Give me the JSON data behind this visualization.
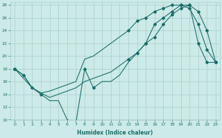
{
  "title": "",
  "xlabel": "Humidex (Indice chaleur)",
  "bg_color": "#cceae7",
  "grid_color": "#aacccc",
  "line_color": "#1a6e6a",
  "xlim": [
    -0.5,
    23.5
  ],
  "ylim": [
    10,
    28.5
  ],
  "xticks": [
    0,
    1,
    2,
    3,
    4,
    5,
    6,
    7,
    8,
    9,
    10,
    11,
    12,
    13,
    14,
    15,
    16,
    17,
    18,
    19,
    20,
    21,
    22,
    23
  ],
  "yticks": [
    10,
    12,
    14,
    16,
    18,
    20,
    22,
    24,
    26,
    28
  ],
  "line1_x": [
    0,
    1,
    2,
    3,
    4,
    5,
    6,
    7,
    8,
    9,
    10,
    11,
    12,
    13,
    14,
    15,
    16,
    17,
    18,
    19,
    20,
    21,
    22,
    23
  ],
  "line1_y": [
    18,
    17,
    15,
    14,
    13,
    13,
    10,
    9.5,
    18,
    15,
    16,
    16,
    17,
    19,
    20.5,
    22,
    25,
    26,
    27,
    28,
    28,
    22,
    19,
    19
  ],
  "line2_x": [
    0,
    1,
    2,
    3,
    4,
    5,
    6,
    7,
    8,
    9,
    10,
    11,
    12,
    13,
    14,
    15,
    16,
    17,
    18,
    19,
    20,
    21,
    22,
    23
  ],
  "line2_y": [
    18,
    17,
    15,
    14.2,
    14.5,
    15.0,
    15.5,
    16,
    19.5,
    20,
    21,
    22,
    23,
    24,
    25.5,
    26,
    27,
    27.5,
    28,
    28,
    27.5,
    25,
    21,
    19
  ],
  "line3_x": [
    0,
    1,
    2,
    3,
    4,
    5,
    6,
    7,
    8,
    9,
    10,
    11,
    12,
    13,
    14,
    15,
    16,
    17,
    18,
    19,
    20,
    21,
    22,
    23
  ],
  "line3_y": [
    18,
    16.5,
    15,
    14.2,
    13.5,
    14.0,
    14.5,
    15,
    16,
    16.5,
    17,
    17.5,
    18.5,
    19.5,
    20.5,
    22,
    23,
    25,
    26.5,
    27.5,
    28,
    27,
    24,
    19
  ],
  "marker1_x": [
    0,
    1,
    2,
    3,
    8,
    9,
    14,
    15,
    16,
    17,
    18,
    19,
    20,
    21,
    22,
    23
  ],
  "marker1_y": [
    18,
    17,
    15,
    14,
    18,
    15,
    20.5,
    22,
    25,
    26,
    27,
    28,
    28,
    22,
    19,
    19
  ],
  "marker2_x": [
    0,
    13,
    14,
    15,
    16,
    17,
    18,
    19,
    20,
    21,
    22,
    23
  ],
  "marker2_y": [
    18,
    24,
    25.5,
    26,
    27,
    27.5,
    28,
    28,
    27.5,
    25,
    21,
    19
  ],
  "marker3_x": [
    0,
    13,
    14,
    15,
    16,
    17,
    18,
    19,
    20,
    21,
    22,
    23
  ],
  "marker3_y": [
    18,
    19.5,
    20.5,
    22,
    23,
    25,
    26.5,
    27.5,
    28,
    27,
    24,
    19
  ]
}
